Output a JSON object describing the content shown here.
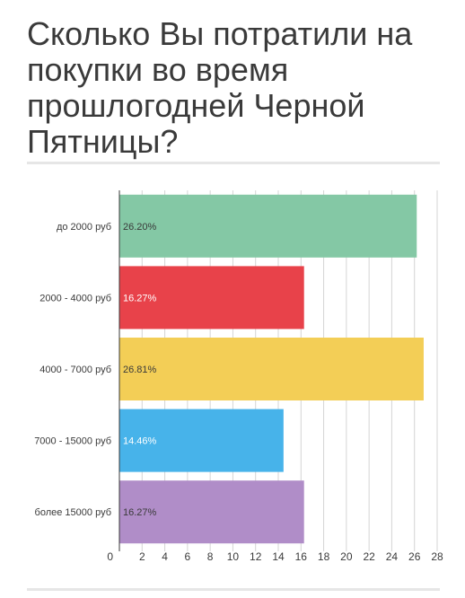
{
  "title": "Сколько Вы потратили на покупки во время прошлогодней Черной Пятницы?",
  "chart_data": {
    "type": "bar",
    "orientation": "horizontal",
    "title": "Сколько Вы потратили на покупки во время прошлогодней Черной Пятницы?",
    "categories": [
      "до 2000 руб",
      "2000 - 4000 руб",
      "4000 - 7000 руб",
      "7000 - 15000 руб",
      "более 15000 руб"
    ],
    "values": [
      26.2,
      16.27,
      26.81,
      14.46,
      16.27
    ],
    "data_labels": [
      "26.20%",
      "16.27%",
      "26.81%",
      "14.46%",
      "16.27%"
    ],
    "colors": [
      "#84c8a5",
      "#e8424a",
      "#f3ce56",
      "#47b3ea",
      "#b08dc8"
    ],
    "label_colors": [
      "#3a3a3a",
      "#ffffff",
      "#3a3a3a",
      "#ffffff",
      "#3a3a3a"
    ],
    "xlim": [
      0,
      28
    ],
    "xticks": [
      0,
      2,
      4,
      6,
      8,
      10,
      12,
      14,
      16,
      18,
      20,
      22,
      24,
      26,
      28
    ],
    "grid": true
  }
}
